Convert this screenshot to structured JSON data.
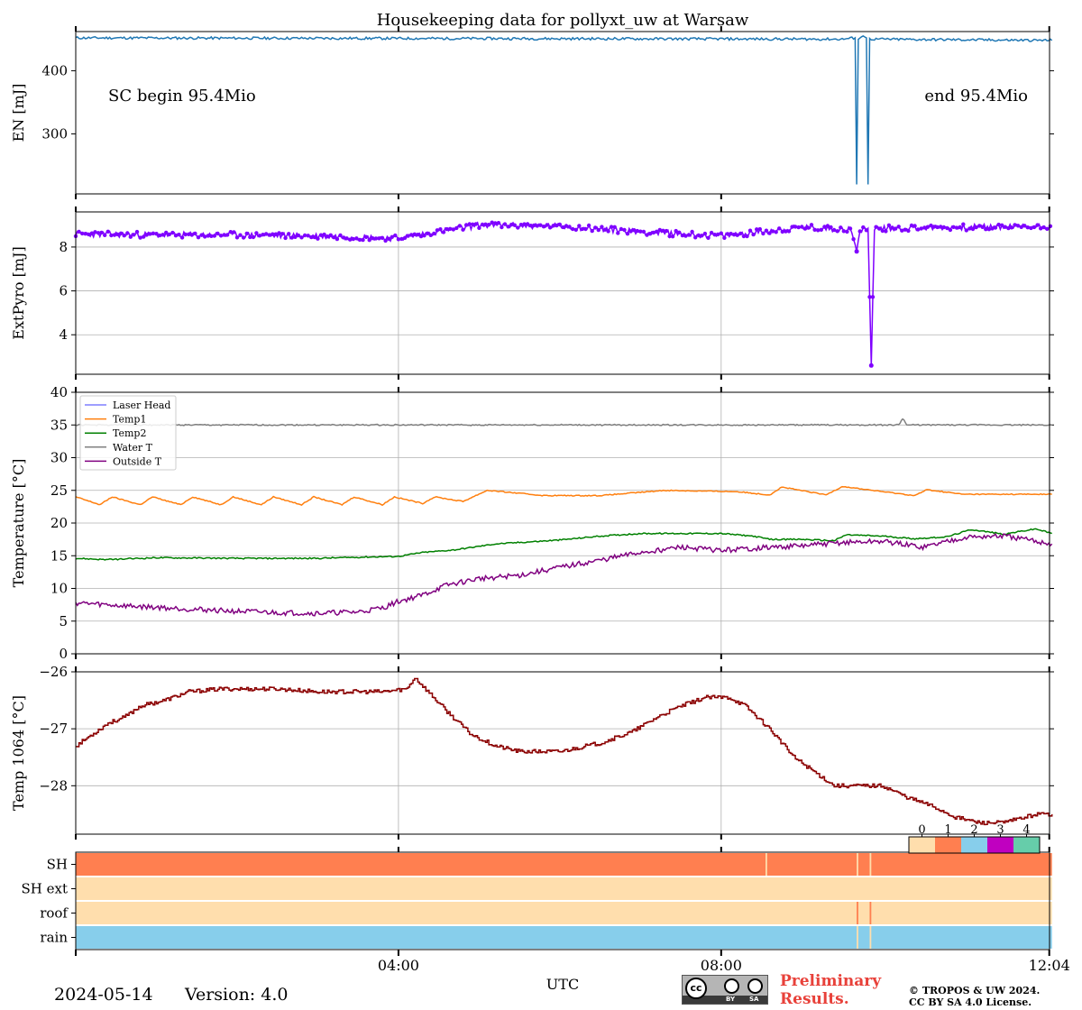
{
  "figure": {
    "title": "Housekeeping data for pollyxt_uw at Warsaw",
    "sc_begin": "SC begin 95.4Mio",
    "sc_end": "end 95.4Mio",
    "xlabel": "UTC",
    "date": "2024-05-14",
    "version": "Version: 4.0",
    "preliminary_line1": "Preliminary",
    "preliminary_line2": "Results.",
    "copyright_line1": "© TROPOS & UW 2024.",
    "copyright_line2": "CC BY SA 4.0 License.",
    "license_badge": {
      "cc": "cc",
      "by": "BY",
      "sa": "SA"
    }
  },
  "chart_data": [
    {
      "type": "line",
      "id": "energy",
      "ylabel": "EN [mJ]",
      "ylim": [
        205,
        462
      ],
      "yticks": [
        300,
        400
      ],
      "grid": false,
      "color": "#1f77b4",
      "points": [
        [
          0.0,
          452
        ],
        [
          9.5,
          450
        ],
        [
          9.66,
          452
        ],
        [
          9.68,
          220
        ],
        [
          9.7,
          451
        ],
        [
          9.76,
          455
        ],
        [
          9.8,
          452
        ],
        [
          9.82,
          220
        ],
        [
          9.84,
          450
        ],
        [
          12.1,
          448
        ]
      ]
    },
    {
      "type": "line",
      "id": "extpyro",
      "ylabel": "ExtPyro [mJ]",
      "ylim": [
        2.2,
        9.6
      ],
      "yticks": [
        4,
        6,
        8
      ],
      "grid": true,
      "color": "#7f00ff",
      "points": [
        [
          0.0,
          8.6
        ],
        [
          1.0,
          8.55
        ],
        [
          2.0,
          8.55
        ],
        [
          3.0,
          8.5
        ],
        [
          4.0,
          8.4
        ],
        [
          5.0,
          9.0
        ],
        [
          6.0,
          8.95
        ],
        [
          7.0,
          8.7
        ],
        [
          8.0,
          8.5
        ],
        [
          9.0,
          8.9
        ],
        [
          9.6,
          8.8
        ],
        [
          9.68,
          7.8
        ],
        [
          9.72,
          8.8
        ],
        [
          9.82,
          8.85
        ],
        [
          9.86,
          2.6
        ],
        [
          9.9,
          8.85
        ],
        [
          11.0,
          8.9
        ],
        [
          12.1,
          8.95
        ]
      ]
    },
    {
      "type": "line",
      "id": "temperature",
      "ylabel": "Temperature [$^\\circ C$]",
      "ylim": [
        0,
        40
      ],
      "yticks": [
        0,
        5,
        10,
        15,
        20,
        25,
        30,
        35,
        40
      ],
      "grid": true,
      "legend_position": "upper-left",
      "series": [
        {
          "name": "Laser Head",
          "color": "#7f7fff",
          "points": []
        },
        {
          "name": "Temp1",
          "color": "#ff7f0e",
          "points": [
            [
              0.0,
              24.0
            ],
            [
              0.3,
              22.8
            ],
            [
              0.45,
              24.0
            ],
            [
              0.8,
              22.8
            ],
            [
              0.95,
              24.0
            ],
            [
              1.3,
              22.8
            ],
            [
              1.45,
              24.0
            ],
            [
              1.8,
              22.8
            ],
            [
              1.95,
              24.0
            ],
            [
              2.3,
              22.8
            ],
            [
              2.45,
              24.0
            ],
            [
              2.8,
              22.8
            ],
            [
              2.95,
              24.0
            ],
            [
              3.3,
              22.8
            ],
            [
              3.45,
              24.0
            ],
            [
              3.8,
              22.8
            ],
            [
              3.95,
              24.0
            ],
            [
              4.3,
              23.0
            ],
            [
              4.45,
              24.0
            ],
            [
              4.8,
              23.3
            ],
            [
              5.1,
              25.0
            ],
            [
              5.8,
              24.2
            ],
            [
              6.5,
              24.2
            ],
            [
              7.3,
              25.0
            ],
            [
              8.2,
              24.8
            ],
            [
              8.6,
              24.3
            ],
            [
              8.75,
              25.5
            ],
            [
              9.3,
              24.3
            ],
            [
              9.5,
              25.6
            ],
            [
              10.0,
              24.8
            ],
            [
              10.4,
              24.2
            ],
            [
              10.55,
              25.1
            ],
            [
              11.0,
              24.4
            ],
            [
              12.1,
              24.4
            ]
          ]
        },
        {
          "name": "Temp2",
          "color": "#008000",
          "points": [
            [
              0.0,
              14.6
            ],
            [
              0.4,
              14.4
            ],
            [
              1.0,
              14.7
            ],
            [
              2.0,
              14.6
            ],
            [
              3.0,
              14.6
            ],
            [
              3.6,
              14.8
            ],
            [
              4.0,
              14.9
            ],
            [
              4.3,
              15.5
            ],
            [
              4.7,
              15.9
            ],
            [
              5.2,
              16.8
            ],
            [
              6.0,
              17.4
            ],
            [
              6.5,
              18.0
            ],
            [
              7.0,
              18.4
            ],
            [
              8.0,
              18.4
            ],
            [
              8.4,
              18.0
            ],
            [
              8.6,
              17.5
            ],
            [
              9.0,
              17.5
            ],
            [
              9.4,
              17.3
            ],
            [
              9.55,
              18.2
            ],
            [
              10.0,
              18.0
            ],
            [
              10.4,
              17.6
            ],
            [
              10.8,
              17.9
            ],
            [
              11.1,
              19.0
            ],
            [
              11.5,
              18.3
            ],
            [
              11.9,
              19.1
            ],
            [
              12.1,
              18.4
            ]
          ]
        },
        {
          "name": "Water T",
          "color": "#808080",
          "points": [
            [
              0.0,
              35.0
            ],
            [
              10.2,
              35.0
            ],
            [
              10.25,
              36.0
            ],
            [
              10.3,
              35.0
            ],
            [
              12.1,
              35.0
            ]
          ]
        },
        {
          "name": "Outside T",
          "color": "#800080",
          "points": [
            [
              0.0,
              7.8
            ],
            [
              0.5,
              7.4
            ],
            [
              1.0,
              7.1
            ],
            [
              1.5,
              6.8
            ],
            [
              2.0,
              6.5
            ],
            [
              2.5,
              6.3
            ],
            [
              3.0,
              6.2
            ],
            [
              3.5,
              6.4
            ],
            [
              3.8,
              7.0
            ],
            [
              4.0,
              8.0
            ],
            [
              4.3,
              9.0
            ],
            [
              4.6,
              10.5
            ],
            [
              5.0,
              11.5
            ],
            [
              5.5,
              12.0
            ],
            [
              6.0,
              13.2
            ],
            [
              6.5,
              14.3
            ],
            [
              7.0,
              15.5
            ],
            [
              7.5,
              16.3
            ],
            [
              8.0,
              15.8
            ],
            [
              8.5,
              16.2
            ],
            [
              9.0,
              16.5
            ],
            [
              9.5,
              17.0
            ],
            [
              10.0,
              17.2
            ],
            [
              10.5,
              16.3
            ],
            [
              11.0,
              17.8
            ],
            [
              11.5,
              18.0
            ],
            [
              12.1,
              16.8
            ]
          ]
        }
      ]
    },
    {
      "type": "line",
      "id": "temp1064",
      "ylabel": "Temp 1064 [$^\\circ C$]",
      "ylim": [
        -28.85,
        -26.0
      ],
      "yticks": [
        -28,
        -27,
        -26
      ],
      "grid": true,
      "color": "#8b0000",
      "step": true,
      "points": [
        [
          0.0,
          -27.3
        ],
        [
          0.2,
          -27.1
        ],
        [
          0.4,
          -26.9
        ],
        [
          0.6,
          -26.8
        ],
        [
          0.8,
          -26.6
        ],
        [
          1.1,
          -26.5
        ],
        [
          1.4,
          -26.35
        ],
        [
          1.8,
          -26.3
        ],
        [
          2.5,
          -26.3
        ],
        [
          3.0,
          -26.35
        ],
        [
          3.8,
          -26.35
        ],
        [
          4.1,
          -26.3
        ],
        [
          4.2,
          -26.1
        ],
        [
          4.4,
          -26.4
        ],
        [
          4.6,
          -26.7
        ],
        [
          4.9,
          -27.1
        ],
        [
          5.2,
          -27.3
        ],
        [
          5.5,
          -27.4
        ],
        [
          6.0,
          -27.4
        ],
        [
          6.5,
          -27.25
        ],
        [
          6.9,
          -27.05
        ],
        [
          7.2,
          -26.8
        ],
        [
          7.5,
          -26.6
        ],
        [
          7.8,
          -26.45
        ],
        [
          8.1,
          -26.45
        ],
        [
          8.3,
          -26.6
        ],
        [
          8.6,
          -27.0
        ],
        [
          8.9,
          -27.5
        ],
        [
          9.2,
          -27.8
        ],
        [
          9.4,
          -28.0
        ],
        [
          10.0,
          -28.0
        ],
        [
          10.3,
          -28.2
        ],
        [
          10.6,
          -28.35
        ],
        [
          10.9,
          -28.55
        ],
        [
          11.2,
          -28.65
        ],
        [
          11.5,
          -28.65
        ],
        [
          11.9,
          -28.5
        ],
        [
          12.1,
          -28.5
        ]
      ]
    },
    {
      "type": "heatmap",
      "id": "status",
      "rows": [
        "SH",
        "SH ext",
        "roof",
        "rain"
      ],
      "colorbar_ticks": [
        "0",
        "1",
        "2",
        "3",
        "4"
      ],
      "colors": [
        "#ffdead",
        "#ff7f50",
        "#87ceeb",
        "#c000c0",
        "#66cdaa"
      ],
      "segments": {
        "SH": [
          [
            0.0,
            12.1,
            1
          ],
          [
            8.55,
            8.57,
            0
          ],
          [
            9.68,
            9.7,
            0
          ],
          [
            9.84,
            9.86,
            0
          ]
        ],
        "SH ext": [
          [
            0.0,
            12.1,
            0
          ]
        ],
        "roof": [
          [
            0.0,
            12.1,
            0
          ],
          [
            9.68,
            9.7,
            1
          ],
          [
            9.84,
            9.86,
            1
          ]
        ],
        "rain": [
          [
            0.0,
            12.1,
            2
          ],
          [
            9.68,
            9.7,
            0
          ],
          [
            9.84,
            9.86,
            0
          ]
        ]
      }
    }
  ],
  "x_axis": {
    "xlim": [
      0.0,
      12.07
    ],
    "tick_values": [
      4.0,
      8.0,
      12.0667
    ],
    "tick_labels": [
      "04:00",
      "08:00",
      "12:04"
    ]
  }
}
